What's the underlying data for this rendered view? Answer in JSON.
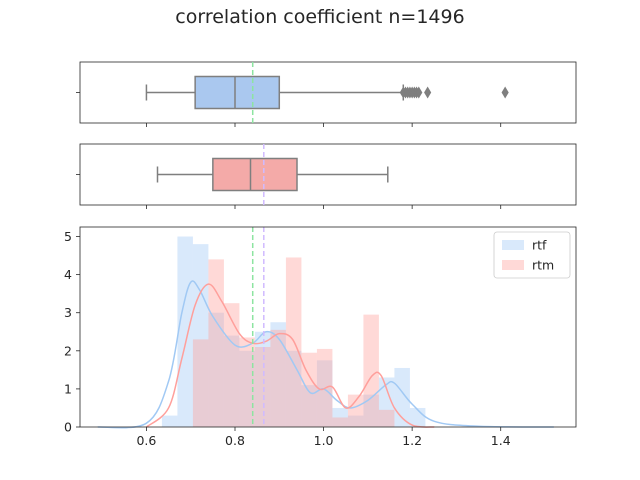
{
  "title": "correlation coefficient n=1496",
  "colors": {
    "rtf": "#a1c9f4",
    "rtm": "#ff9f9b",
    "median_line_1": "#8de5a1",
    "median_line_2": "#d0bbff",
    "box_edge": "#7f7f7f",
    "box_rtf_fill": "#aac8ef",
    "box_rtm_fill": "#f4aaa8"
  },
  "chart_data": [
    {
      "type": "box",
      "series": "rtf",
      "whisker_low": 0.6,
      "q1": 0.71,
      "median": 0.8,
      "q3": 0.9,
      "whisker_high": 1.18,
      "outliers": [
        1.18,
        1.185,
        1.19,
        1.195,
        1.2,
        1.205,
        1.21,
        1.215,
        1.235,
        1.41
      ],
      "reference_line": 0.84,
      "xlim": [
        0.45,
        1.57
      ]
    },
    {
      "type": "box",
      "series": "rtm",
      "whisker_low": 0.625,
      "q1": 0.75,
      "median": 0.835,
      "q3": 0.94,
      "whisker_high": 1.145,
      "reference_line": 0.865,
      "xlim": [
        0.45,
        1.57
      ]
    },
    {
      "type": "histogram",
      "xlim": [
        0.45,
        1.57
      ],
      "ylim": [
        0,
        5.25
      ],
      "xticks": [
        "0.6",
        "0.8",
        "1.0",
        "1.2",
        "1.4"
      ],
      "yticks": [
        "0",
        "1",
        "2",
        "3",
        "4",
        "5"
      ],
      "legend": {
        "placement": "top-right",
        "entries": [
          "rtf",
          "rtm"
        ]
      },
      "reference_lines": [
        0.84,
        0.865
      ],
      "series": [
        {
          "name": "rtf",
          "bins": [
            [
              0.635,
              0.67,
              0.3
            ],
            [
              0.67,
              0.705,
              5.0
            ],
            [
              0.705,
              0.74,
              4.8
            ],
            [
              0.74,
              0.775,
              3.0
            ],
            [
              0.775,
              0.81,
              2.4
            ],
            [
              0.81,
              0.845,
              2.0
            ],
            [
              0.845,
              0.88,
              2.5
            ],
            [
              0.88,
              0.915,
              2.75
            ],
            [
              0.915,
              0.95,
              2.0
            ],
            [
              0.95,
              0.985,
              1.1
            ],
            [
              0.985,
              1.02,
              1.75
            ],
            [
              1.02,
              1.055,
              0.5
            ],
            [
              1.055,
              1.09,
              0.3
            ],
            [
              1.09,
              1.125,
              0.85
            ],
            [
              1.125,
              1.16,
              1.3
            ],
            [
              1.16,
              1.195,
              1.55
            ],
            [
              1.195,
              1.23,
              0.5
            ]
          ],
          "kde": [
            [
              0.49,
              0.0
            ],
            [
              0.6,
              0.1
            ],
            [
              0.65,
              1.2
            ],
            [
              0.68,
              3.0
            ],
            [
              0.7,
              3.8
            ],
            [
              0.72,
              3.6
            ],
            [
              0.75,
              2.9
            ],
            [
              0.8,
              2.15
            ],
            [
              0.84,
              2.2
            ],
            [
              0.87,
              2.5
            ],
            [
              0.9,
              2.3
            ],
            [
              0.94,
              1.5
            ],
            [
              0.97,
              0.9
            ],
            [
              1.0,
              1.0
            ],
            [
              1.03,
              0.7
            ],
            [
              1.06,
              0.5
            ],
            [
              1.1,
              0.7
            ],
            [
              1.14,
              1.1
            ],
            [
              1.16,
              1.15
            ],
            [
              1.2,
              0.6
            ],
            [
              1.25,
              0.15
            ],
            [
              1.35,
              0.02
            ],
            [
              1.52,
              0.0
            ]
          ]
        },
        {
          "name": "rtm",
          "bins": [
            [
              0.705,
              0.74,
              2.3
            ],
            [
              0.74,
              0.775,
              4.4
            ],
            [
              0.775,
              0.81,
              3.25
            ],
            [
              0.81,
              0.845,
              2.35
            ],
            [
              0.845,
              0.88,
              2.1
            ],
            [
              0.88,
              0.915,
              2.55
            ],
            [
              0.915,
              0.95,
              4.45
            ],
            [
              0.95,
              0.985,
              1.95
            ],
            [
              0.985,
              1.02,
              2.05
            ],
            [
              1.02,
              1.055,
              0.25
            ],
            [
              1.055,
              1.09,
              0.85
            ],
            [
              1.09,
              1.125,
              2.95
            ],
            [
              1.125,
              1.16,
              0.45
            ]
          ],
          "kde": [
            [
              0.6,
              0.0
            ],
            [
              0.65,
              0.5
            ],
            [
              0.68,
              1.8
            ],
            [
              0.71,
              3.2
            ],
            [
              0.74,
              3.75
            ],
            [
              0.77,
              3.3
            ],
            [
              0.81,
              2.45
            ],
            [
              0.84,
              2.2
            ],
            [
              0.87,
              2.25
            ],
            [
              0.9,
              2.45
            ],
            [
              0.93,
              2.3
            ],
            [
              0.96,
              1.5
            ],
            [
              0.99,
              1.0
            ],
            [
              1.02,
              1.05
            ],
            [
              1.05,
              0.5
            ],
            [
              1.08,
              0.8
            ],
            [
              1.11,
              1.35
            ],
            [
              1.13,
              1.35
            ],
            [
              1.16,
              0.5
            ],
            [
              1.2,
              0.05
            ],
            [
              1.25,
              0.0
            ]
          ]
        }
      ]
    }
  ]
}
